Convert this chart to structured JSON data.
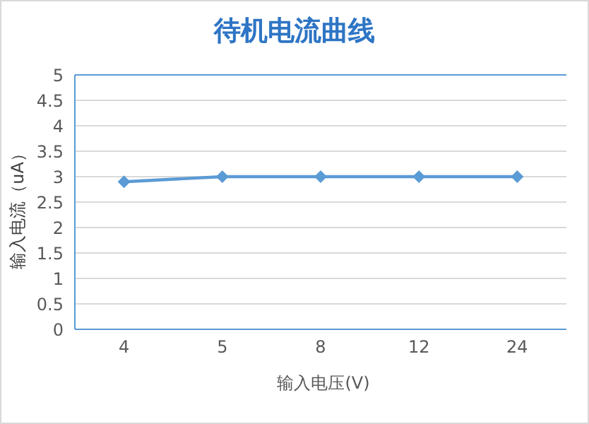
{
  "chart_data": {
    "type": "line",
    "title": "待机电流曲线",
    "xlabel": "输入电压(V)",
    "ylabel": "输入电流（uA）",
    "categories": [
      "4",
      "5",
      "8",
      "12",
      "24"
    ],
    "series": [
      {
        "color": "#5b9bd5",
        "values": [
          2.9,
          3,
          3,
          3,
          3
        ]
      }
    ],
    "ylim": [
      0,
      5
    ],
    "yticks": [
      0,
      0.5,
      1,
      1.5,
      2,
      2.5,
      3,
      3.5,
      4,
      4.5,
      5
    ],
    "grid": "y",
    "marker": "diamond",
    "line_style": "solid"
  }
}
